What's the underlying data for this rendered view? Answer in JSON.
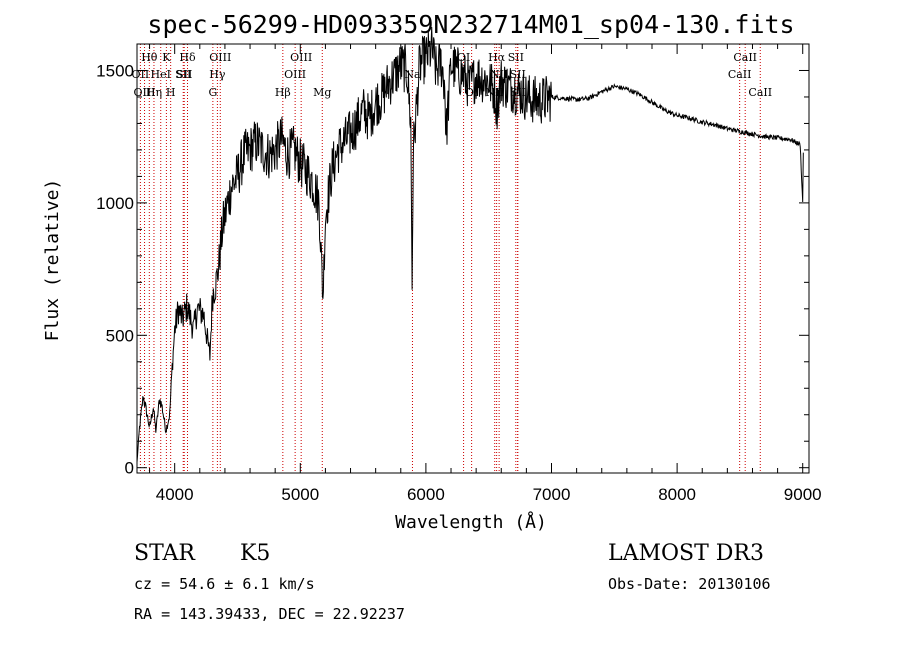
{
  "chart_data": {
    "type": "line",
    "title": "spec-56299-HD093359N232714M01_sp04-130.fits",
    "xlabel": "Wavelength (Å)",
    "ylabel": "Flux (relative)",
    "xlim": [
      3700,
      9050
    ],
    "ylim": [
      -20,
      1600
    ],
    "xticks": [
      4000,
      5000,
      6000,
      7000,
      8000,
      9000
    ],
    "yticks": [
      0,
      500,
      1000,
      1500
    ],
    "xtick_labels": [
      "4000",
      "5000",
      "6000",
      "7000",
      "8000",
      "9000"
    ],
    "ytick_labels": [
      "0",
      "500",
      "1000",
      "1500"
    ],
    "spectrum_anchors": [
      [
        3700,
        20
      ],
      [
        3720,
        150
      ],
      [
        3750,
        270
      ],
      [
        3780,
        200
      ],
      [
        3800,
        150
      ],
      [
        3830,
        230
      ],
      [
        3850,
        140
      ],
      [
        3880,
        260
      ],
      [
        3900,
        230
      ],
      [
        3930,
        140
      ],
      [
        3960,
        200
      ],
      [
        3980,
        380
      ],
      [
        4000,
        520
      ],
      [
        4030,
        600
      ],
      [
        4060,
        560
      ],
      [
        4100,
        610
      ],
      [
        4150,
        520
      ],
      [
        4180,
        600
      ],
      [
        4230,
        580
      ],
      [
        4280,
        420
      ],
      [
        4300,
        650
      ],
      [
        4330,
        700
      ],
      [
        4350,
        760
      ],
      [
        4380,
        900
      ],
      [
        4400,
        950
      ],
      [
        4450,
        1060
      ],
      [
        4500,
        1100
      ],
      [
        4550,
        1180
      ],
      [
        4600,
        1200
      ],
      [
        4650,
        1230
      ],
      [
        4700,
        1200
      ],
      [
        4750,
        1180
      ],
      [
        4800,
        1200
      ],
      [
        4850,
        1240
      ],
      [
        4900,
        1180
      ],
      [
        4950,
        1200
      ],
      [
        5000,
        1150
      ],
      [
        5050,
        1120
      ],
      [
        5100,
        1080
      ],
      [
        5150,
        1000
      ],
      [
        5180,
        640
      ],
      [
        5200,
        950
      ],
      [
        5250,
        1120
      ],
      [
        5300,
        1200
      ],
      [
        5350,
        1230
      ],
      [
        5400,
        1260
      ],
      [
        5450,
        1300
      ],
      [
        5500,
        1350
      ],
      [
        5550,
        1320
      ],
      [
        5600,
        1380
      ],
      [
        5650,
        1400
      ],
      [
        5700,
        1450
      ],
      [
        5750,
        1480
      ],
      [
        5800,
        1520
      ],
      [
        5850,
        1500
      ],
      [
        5880,
        1300
      ],
      [
        5890,
        680
      ],
      [
        5900,
        1200
      ],
      [
        5950,
        1520
      ],
      [
        6000,
        1550
      ],
      [
        6050,
        1580
      ],
      [
        6080,
        1500
      ],
      [
        6120,
        1530
      ],
      [
        6150,
        1450
      ],
      [
        6160,
        1250
      ],
      [
        6200,
        1520
      ],
      [
        6250,
        1500
      ],
      [
        6300,
        1480
      ],
      [
        6350,
        1440
      ],
      [
        6400,
        1480
      ],
      [
        6450,
        1470
      ],
      [
        6500,
        1460
      ],
      [
        6550,
        1420
      ],
      [
        6563,
        1360
      ],
      [
        6600,
        1460
      ],
      [
        6650,
        1440
      ],
      [
        6700,
        1430
      ],
      [
        6750,
        1420
      ],
      [
        6800,
        1400
      ],
      [
        6850,
        1390
      ],
      [
        6900,
        1385
      ],
      [
        6950,
        1390
      ],
      [
        7000,
        1400
      ],
      [
        7100,
        1395
      ],
      [
        7200,
        1390
      ],
      [
        7300,
        1395
      ],
      [
        7400,
        1420
      ],
      [
        7500,
        1440
      ],
      [
        7600,
        1430
      ],
      [
        7700,
        1410
      ],
      [
        7800,
        1380
      ],
      [
        7900,
        1350
      ],
      [
        8000,
        1330
      ],
      [
        8100,
        1320
      ],
      [
        8200,
        1305
      ],
      [
        8300,
        1295
      ],
      [
        8400,
        1280
      ],
      [
        8500,
        1270
      ],
      [
        8600,
        1260
      ],
      [
        8700,
        1250
      ],
      [
        8800,
        1245
      ],
      [
        8900,
        1240
      ],
      [
        8980,
        1220
      ],
      [
        9000,
        1000
      ],
      [
        9005,
        1190
      ]
    ],
    "line_markers": [
      {
        "label": "Hθ",
        "x": 3798,
        "row": 1
      },
      {
        "label": "OII",
        "x": 3727,
        "row": 2
      },
      {
        "label": "OIII",
        "x": 3760,
        "row": 3
      },
      {
        "label": "K",
        "x": 3934,
        "row": 1
      },
      {
        "label": "HeI",
        "x": 3889,
        "row": 2
      },
      {
        "label": "Hη",
        "x": 3835,
        "row": 3
      },
      {
        "label": "SII",
        "x": 4068,
        "row": 2
      },
      {
        "label": "H",
        "x": 3968,
        "row": 3
      },
      {
        "label": "Hδ",
        "x": 4102,
        "row": 1
      },
      {
        "label": "SII",
        "x": 4076,
        "row": 2
      },
      {
        "label": "OIII",
        "x": 4363,
        "row": 1
      },
      {
        "label": "Hγ",
        "x": 4340,
        "row": 2
      },
      {
        "label": "G",
        "x": 4304,
        "row": 3
      },
      {
        "label": "Hβ",
        "x": 4861,
        "row": 3
      },
      {
        "label": "OIII",
        "x": 5007,
        "row": 1
      },
      {
        "label": "OIII",
        "x": 4959,
        "row": 2
      },
      {
        "label": "Mg",
        "x": 5175,
        "row": 3
      },
      {
        "label": "Na",
        "x": 5893,
        "row": 2
      },
      {
        "label": "OI",
        "x": 6300,
        "row": 1
      },
      {
        "label": "OI",
        "x": 6364,
        "row": 3
      },
      {
        "label": "Hα",
        "x": 6563,
        "row": 1
      },
      {
        "label": "NII",
        "x": 6583,
        "row": 2
      },
      {
        "label": "NII",
        "x": 6548,
        "row": 3
      },
      {
        "label": "SII",
        "x": 6716,
        "row": 1
      },
      {
        "label": "SII",
        "x": 6731,
        "row": 2
      },
      {
        "label": "SII",
        "x": 6731,
        "row": 3
      },
      {
        "label": "CaII",
        "x": 8542,
        "row": 1
      },
      {
        "label": "CaII",
        "x": 8498,
        "row": 2
      },
      {
        "label": "CaII",
        "x": 8662,
        "row": 3
      }
    ],
    "marker_color": "#cc0000",
    "line_color": "#000000"
  },
  "info": {
    "obj_class": "STAR",
    "subclass": "K5",
    "survey": "LAMOST DR3",
    "redshift_text": "cz = 54.6 ± 6.1 km/s",
    "obs_date": "Obs-Date: 20130106",
    "coords": "RA = 143.39433, DEC =  22.92237"
  }
}
